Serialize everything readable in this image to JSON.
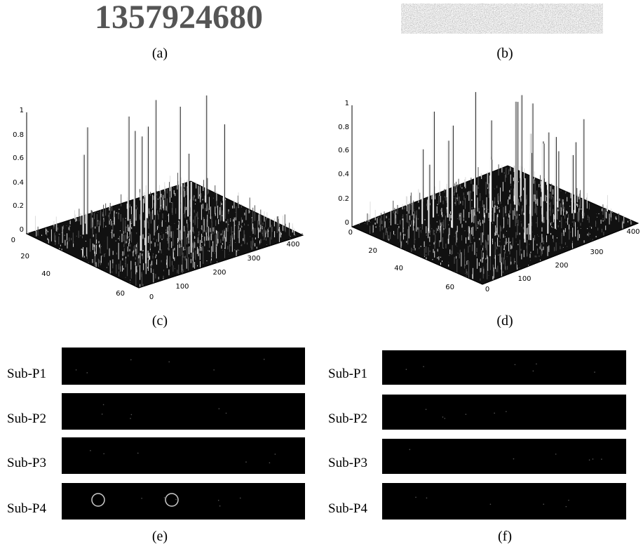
{
  "panels": [
    {
      "label": "(a)",
      "text": "1357924680"
    },
    {
      "label": "(b)"
    },
    {
      "label": "(c)",
      "z_ticks": [
        "1",
        "0.8",
        "0.6",
        "0.4",
        "0.2",
        "0"
      ],
      "y_ticks": [
        "0",
        "20",
        "40",
        "60"
      ],
      "x_ticks": [
        "0",
        "100",
        "200",
        "300",
        "400"
      ]
    },
    {
      "label": "(d)",
      "z_ticks": [
        "1",
        "0.8",
        "0.6",
        "0.4",
        "0.2",
        "0"
      ],
      "y_ticks": [
        "0",
        "20",
        "40",
        "60"
      ],
      "x_ticks": [
        "0",
        "100",
        "200",
        "300",
        "400"
      ]
    },
    {
      "label": "(e)",
      "rows": [
        "Sub-P1",
        "Sub-P2",
        "Sub-P3",
        "Sub-P4"
      ]
    },
    {
      "label": "(f)",
      "rows": [
        "Sub-P1",
        "Sub-P2",
        "Sub-P3",
        "Sub-P4"
      ]
    }
  ]
}
